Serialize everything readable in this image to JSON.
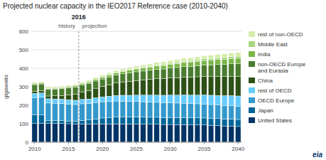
{
  "chart_data": {
    "type": "bar",
    "stacked": true,
    "title": "Projected nuclear capacity in the IEO2017 Reference case (2010-2040)",
    "ylabel": "gigawatts",
    "x": [
      2010,
      2011,
      2012,
      2013,
      2014,
      2015,
      2016,
      2017,
      2018,
      2019,
      2020,
      2021,
      2022,
      2023,
      2024,
      2025,
      2026,
      2027,
      2028,
      2029,
      2030,
      2031,
      2032,
      2033,
      2034,
      2035,
      2036,
      2037,
      2038,
      2039,
      2040
    ],
    "xlim": [
      2009.5,
      2040.5
    ],
    "xticks": [
      2010,
      2015,
      2020,
      2025,
      2030,
      2035,
      2040
    ],
    "ylim": [
      0,
      600
    ],
    "yticks": [
      0,
      100,
      200,
      300,
      400,
      500,
      600
    ],
    "grid": true,
    "legend": "right",
    "series": [
      {
        "name": "United States",
        "color": "#003366",
        "values": [
          101,
          102,
          102,
          102,
          102,
          100,
          99,
          99,
          99,
          99,
          99,
          99,
          99,
          99,
          98,
          98,
          98,
          97,
          97,
          96,
          96,
          95,
          95,
          94,
          94,
          93,
          91,
          90,
          88,
          87,
          85
        ]
      },
      {
        "name": "Japan",
        "color": "#006699",
        "values": [
          47,
          47,
          15,
          15,
          15,
          15,
          15,
          18,
          22,
          27,
          32,
          35,
          38,
          38,
          38,
          38,
          38,
          38,
          38,
          38,
          38,
          38,
          38,
          38,
          38,
          38,
          38,
          38,
          38,
          38,
          38
        ]
      },
      {
        "name": "OECD Europe",
        "color": "#3399cc",
        "values": [
          93,
          94,
          95,
          94,
          93,
          92,
          90,
          91,
          89,
          89,
          88,
          87,
          86,
          85,
          84,
          84,
          83,
          82,
          81,
          80,
          79,
          79,
          78,
          77,
          76,
          76,
          75,
          74,
          73,
          73,
          72
        ]
      },
      {
        "name": "rest of OECD",
        "color": "#66ccff",
        "values": [
          23,
          23,
          23,
          23,
          23,
          23,
          23,
          24,
          24,
          25,
          26,
          28,
          30,
          32,
          34,
          35,
          36,
          38,
          39,
          40,
          42,
          43,
          45,
          46,
          47,
          49,
          50,
          51,
          53,
          54,
          55
        ]
      },
      {
        "name": "China",
        "color": "#2d5016",
        "values": [
          11,
          13,
          15,
          17,
          20,
          27,
          34,
          39,
          46,
          52,
          57,
          62,
          67,
          72,
          76,
          79,
          82,
          85,
          88,
          90,
          92,
          94,
          96,
          97,
          99,
          100,
          102,
          103,
          104,
          105,
          106
        ]
      },
      {
        "name": "non-OECD Europe\nand Eurasia",
        "color": "#4a7c2f",
        "values": [
          36,
          36,
          36,
          36,
          36,
          37,
          37,
          38,
          38,
          39,
          40,
          41,
          43,
          44,
          46,
          47,
          48,
          49,
          51,
          52,
          54,
          55,
          57,
          58,
          59,
          61,
          62,
          64,
          65,
          67,
          68
        ]
      },
      {
        "name": "India",
        "color": "#7ab648",
        "values": [
          5,
          5,
          5,
          5,
          6,
          6,
          7,
          7,
          8,
          9,
          10,
          11,
          12,
          13,
          14,
          15,
          16,
          17,
          18,
          19,
          20,
          21,
          22,
          23,
          24,
          25,
          26,
          27,
          28,
          29,
          30
        ]
      },
      {
        "name": "Middle East",
        "color": "#a8d580",
        "values": [
          0,
          0,
          0,
          0,
          0,
          0,
          0,
          0,
          1,
          1,
          1,
          2,
          2,
          3,
          3,
          4,
          4,
          5,
          5,
          6,
          6,
          7,
          7,
          8,
          8,
          9,
          9,
          10,
          10,
          11,
          11
        ]
      },
      {
        "name": "rest of non-OECD",
        "color": "#d4edaa",
        "values": [
          8,
          8,
          8,
          8,
          8,
          8,
          8,
          9,
          9,
          9,
          10,
          10,
          11,
          11,
          12,
          12,
          13,
          13,
          14,
          14,
          15,
          15,
          16,
          16,
          17,
          17,
          18,
          18,
          19,
          19,
          20
        ]
      }
    ],
    "divider": {
      "x": 2016.5,
      "label": "2016",
      "before": "history",
      "after": "projection"
    },
    "logo": "eia"
  }
}
